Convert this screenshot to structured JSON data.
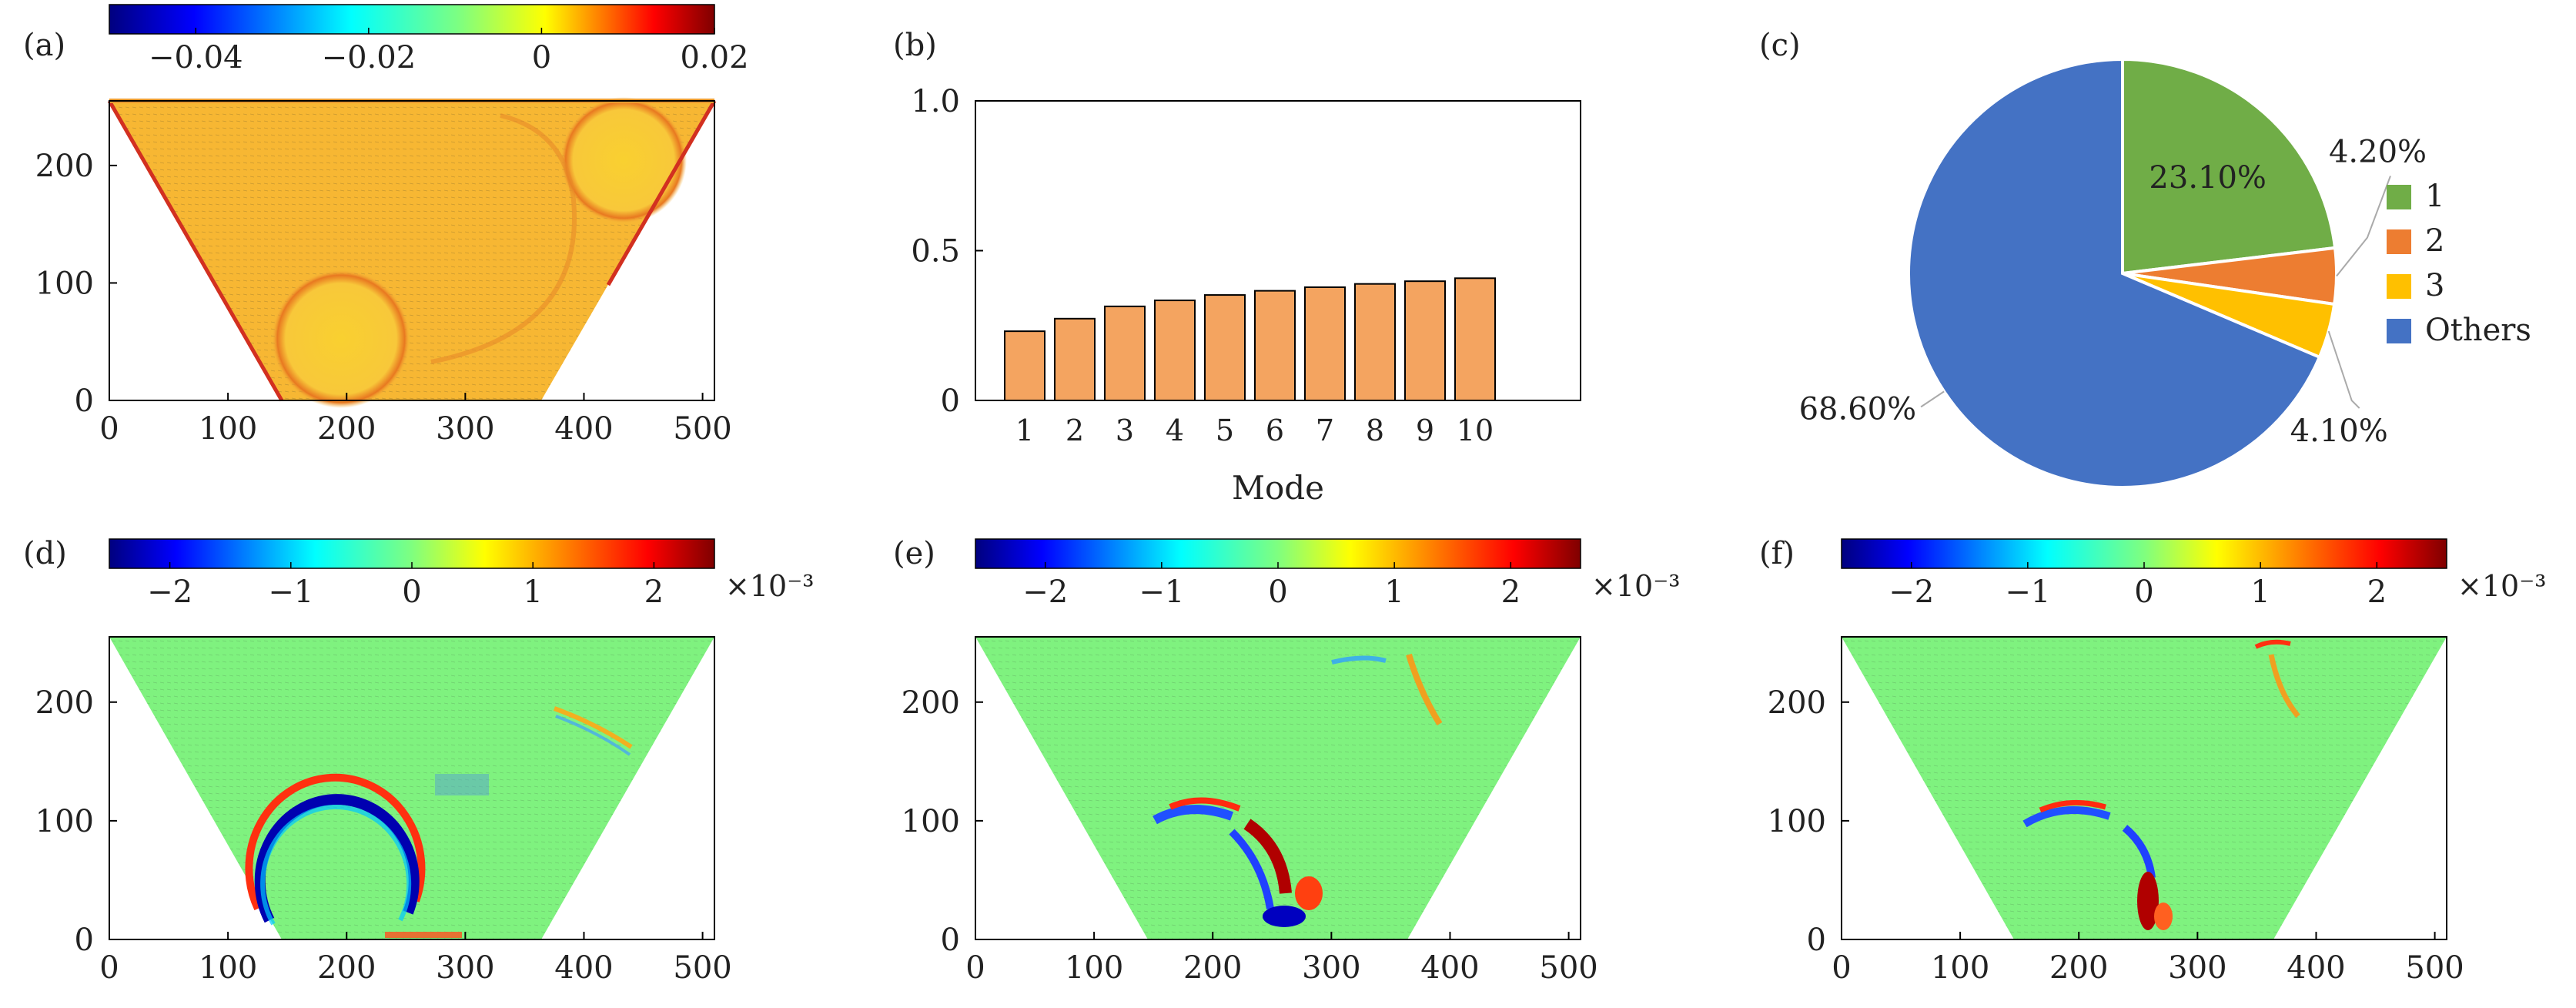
{
  "panels": {
    "a": {
      "label": "(a)",
      "colorbar": {
        "ticks": [
          "−0.04",
          "−0.02",
          "0",
          "0.02"
        ],
        "values": [
          -0.04,
          -0.02,
          0,
          0.02
        ],
        "range": [
          -0.05,
          0.02
        ],
        "exponent": ""
      },
      "x_ticks": [
        0,
        100,
        200,
        300,
        400,
        500
      ],
      "y_ticks": [
        0,
        100,
        200
      ],
      "xlim": [
        0,
        510
      ],
      "ylim": [
        0,
        255
      ]
    },
    "d": {
      "label": "(d)",
      "colorbar": {
        "ticks": [
          "−2",
          "−1",
          "0",
          "1",
          "2"
        ],
        "values": [
          -2,
          -1,
          0,
          1,
          2
        ],
        "range": [
          -2.5,
          2.5
        ],
        "exponent": "×10⁻³"
      },
      "x_ticks": [
        0,
        100,
        200,
        300,
        400,
        500
      ],
      "y_ticks": [
        0,
        100,
        200
      ],
      "xlim": [
        0,
        510
      ],
      "ylim": [
        0,
        255
      ]
    },
    "e": {
      "label": "(e)",
      "colorbar": {
        "ticks": [
          "−2",
          "−1",
          "0",
          "1",
          "2"
        ],
        "values": [
          -2,
          -1,
          0,
          1,
          2
        ],
        "range": [
          -2.6,
          2.6
        ],
        "exponent": "×10⁻³"
      },
      "x_ticks": [
        0,
        100,
        200,
        300,
        400,
        500
      ],
      "y_ticks": [
        0,
        100,
        200
      ],
      "xlim": [
        0,
        510
      ],
      "ylim": [
        0,
        255
      ]
    },
    "f": {
      "label": "(f)",
      "colorbar": {
        "ticks": [
          "−2",
          "−1",
          "0",
          "1",
          "2"
        ],
        "values": [
          -2,
          -1,
          0,
          1,
          2
        ],
        "range": [
          -2.6,
          2.6
        ],
        "exponent": "×10⁻³"
      },
      "x_ticks": [
        0,
        100,
        200,
        300,
        400,
        500
      ],
      "y_ticks": [
        0,
        100,
        200
      ],
      "xlim": [
        0,
        510
      ],
      "ylim": [
        0,
        255
      ]
    }
  },
  "chart_data": [
    {
      "panel": "(b)",
      "type": "bar",
      "categories": [
        "1",
        "2",
        "3",
        "4",
        "5",
        "6",
        "7",
        "8",
        "9",
        "10"
      ],
      "values": [
        0.231,
        0.273,
        0.314,
        0.334,
        0.352,
        0.366,
        0.378,
        0.389,
        0.398,
        0.408
      ],
      "xlabel": "Mode",
      "ylabel": "",
      "ylim": [
        0,
        1.0
      ],
      "yticks": [
        "0",
        "0.5",
        "1.0"
      ],
      "yticks_values": [
        0,
        0.5,
        1.0
      ],
      "bar_color": "#F4A460",
      "grid": false
    },
    {
      "panel": "(c)",
      "type": "pie",
      "labels": [
        "1",
        "2",
        "3",
        "Others"
      ],
      "values": [
        23.1,
        4.2,
        4.1,
        68.6
      ],
      "value_labels": [
        "23.10%",
        "4.20%",
        "4.10%",
        "68.60%"
      ],
      "colors": [
        "#70AD47",
        "#ED7D31",
        "#FFC000",
        "#4472C4"
      ],
      "legend_placement": "right"
    }
  ]
}
